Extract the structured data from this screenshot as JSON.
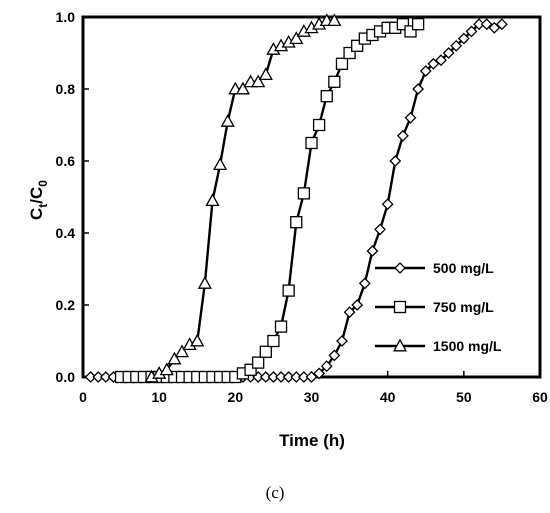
{
  "chart_data": {
    "type": "line",
    "caption": "(c)",
    "xlabel": "Time (h)",
    "ylabel": {
      "main": "C",
      "sub1": "t",
      "mid": "/C",
      "sub2": "0"
    },
    "xlim": [
      0,
      60
    ],
    "ylim": [
      0,
      1.0
    ],
    "x_ticks": [
      "0",
      "10",
      "20",
      "30",
      "40",
      "50",
      "60"
    ],
    "y_ticks": [
      "0.0",
      "0.2",
      "0.4",
      "0.6",
      "0.8",
      "1.0"
    ],
    "grid": false,
    "legend_position": "bottom-right",
    "series": [
      {
        "name": "500 mg/L",
        "marker": "diamond",
        "x": [
          1,
          2,
          3,
          4,
          5,
          6,
          7,
          8,
          9,
          10,
          11,
          12,
          13,
          14,
          15,
          16,
          17,
          18,
          19,
          20,
          21,
          22,
          23,
          24,
          25,
          26,
          27,
          28,
          29,
          30,
          31,
          32,
          33,
          34,
          35,
          36,
          37,
          38,
          39,
          40,
          41,
          42,
          43,
          44,
          45,
          46,
          47,
          48,
          49,
          50,
          51,
          52,
          53,
          54,
          55
        ],
        "y": [
          0.0,
          0.0,
          0.0,
          0.0,
          0.0,
          0.0,
          0.0,
          0.0,
          0.0,
          0.0,
          0.0,
          0.0,
          0.0,
          0.0,
          0.0,
          0.0,
          0.0,
          0.0,
          0.0,
          0.0,
          0.0,
          0.0,
          0.0,
          0.0,
          0.0,
          0.0,
          0.0,
          0.0,
          0.0,
          0.0,
          0.01,
          0.03,
          0.06,
          0.1,
          0.18,
          0.2,
          0.26,
          0.35,
          0.41,
          0.48,
          0.6,
          0.67,
          0.72,
          0.8,
          0.85,
          0.87,
          0.88,
          0.9,
          0.92,
          0.94,
          0.96,
          0.98,
          0.98,
          0.97,
          0.98
        ]
      },
      {
        "name": "750 mg/L",
        "marker": "square",
        "x": [
          5,
          6,
          7,
          8,
          9,
          10,
          11,
          12,
          13,
          14,
          15,
          16,
          17,
          18,
          19,
          20,
          21,
          22,
          23,
          24,
          25,
          26,
          27,
          28,
          29,
          30,
          31,
          32,
          33,
          34,
          35,
          36,
          37,
          38,
          39,
          40,
          41,
          42,
          43,
          44
        ],
        "y": [
          0.0,
          0.0,
          0.0,
          0.0,
          0.0,
          0.0,
          0.0,
          0.0,
          0.0,
          0.0,
          0.0,
          0.0,
          0.0,
          0.0,
          0.0,
          0.0,
          0.01,
          0.02,
          0.04,
          0.07,
          0.1,
          0.14,
          0.24,
          0.43,
          0.51,
          0.65,
          0.7,
          0.78,
          0.82,
          0.87,
          0.9,
          0.92,
          0.94,
          0.95,
          0.96,
          0.97,
          0.97,
          0.98,
          0.96,
          0.98
        ]
      },
      {
        "name": "1500 mg/L",
        "marker": "triangle",
        "x": [
          9,
          10,
          11,
          12,
          13,
          14,
          15,
          16,
          17,
          18,
          19,
          20,
          21,
          22,
          23,
          24,
          25,
          26,
          27,
          28,
          29,
          30,
          31,
          32,
          33
        ],
        "y": [
          0.0,
          0.01,
          0.02,
          0.05,
          0.07,
          0.09,
          0.1,
          0.26,
          0.49,
          0.59,
          0.71,
          0.8,
          0.8,
          0.82,
          0.82,
          0.84,
          0.91,
          0.92,
          0.93,
          0.94,
          0.96,
          0.97,
          0.98,
          0.99,
          0.99
        ]
      }
    ]
  }
}
